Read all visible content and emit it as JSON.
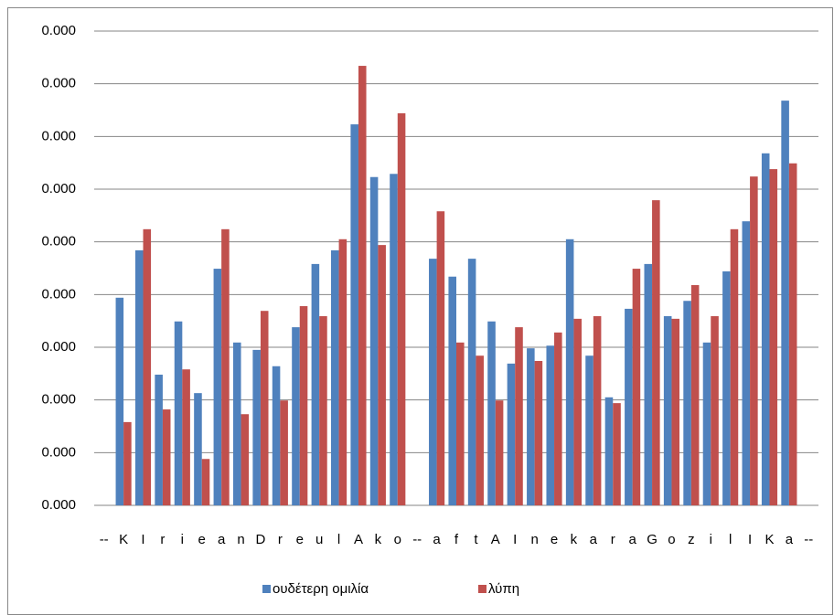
{
  "chart_data": {
    "type": "bar",
    "categories": [
      "--",
      "K",
      "I",
      "r",
      "i",
      "e",
      "a",
      "n",
      "D",
      "r",
      "e",
      "u",
      "l",
      "A",
      "k",
      "o",
      "--",
      "a",
      "f",
      "t",
      "A",
      "I",
      "n",
      "e",
      "k",
      "a",
      "r",
      "a",
      "G",
      "o",
      "z",
      "i",
      "l",
      "I",
      "K",
      "a",
      "--"
    ],
    "series": [
      {
        "name": "ουδέτερη ομιλία",
        "color": "#4f81bd",
        "values": [
          null,
          0.000394,
          0.000484,
          0.000248,
          0.000349,
          0.000213,
          0.000449,
          0.000309,
          0.000295,
          0.000264,
          0.000338,
          0.000458,
          0.000484,
          0.000723,
          0.000623,
          0.000629,
          null,
          0.000468,
          0.000434,
          0.000468,
          0.000349,
          0.000269,
          0.000298,
          0.000303,
          0.000505,
          0.000284,
          0.000205,
          0.000373,
          0.000458,
          0.000359,
          0.000388,
          0.000309,
          0.000444,
          0.000539,
          0.000668,
          0.000768,
          null
        ]
      },
      {
        "name": "λύπη",
        "color": "#c0504d",
        "values": [
          null,
          0.000158,
          0.000524,
          0.000182,
          0.000258,
          8.8e-05,
          0.000524,
          0.000173,
          0.000369,
          0.000199,
          0.000378,
          0.000359,
          0.000505,
          0.000834,
          0.000494,
          0.000744,
          null,
          0.000558,
          0.000309,
          0.000284,
          0.000199,
          0.000338,
          0.000274,
          0.000328,
          0.000354,
          0.000359,
          0.000194,
          0.000449,
          0.000579,
          0.000354,
          0.000418,
          0.000359,
          0.000524,
          0.000624,
          0.000638,
          0.000649,
          null
        ]
      }
    ],
    "ylim": [
      0,
      0.0009
    ],
    "yticks": [
      {
        "value": 0,
        "label": "0.000"
      },
      {
        "value": 0.0001,
        "label": "0.000"
      },
      {
        "value": 0.0002,
        "label": "0.000"
      },
      {
        "value": 0.0003,
        "label": "0.000"
      },
      {
        "value": 0.0004,
        "label": "0.000"
      },
      {
        "value": 0.0005,
        "label": "0.000"
      },
      {
        "value": 0.0006,
        "label": "0.000"
      },
      {
        "value": 0.0007,
        "label": "0.000"
      },
      {
        "value": 0.0008,
        "label": "0.000"
      },
      {
        "value": 0.0009,
        "label": "0.000"
      }
    ],
    "grid": true,
    "legend": "bottom"
  }
}
